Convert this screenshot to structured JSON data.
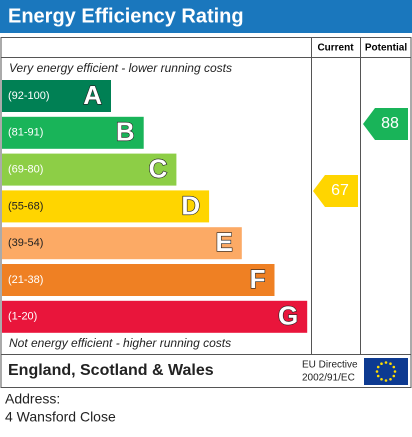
{
  "title": "Energy Efficiency Rating",
  "headers": {
    "current": "Current",
    "potential": "Potential"
  },
  "top_note": "Very energy efficient - lower running costs",
  "bottom_note": "Not energy efficient - higher running costs",
  "bands": [
    {
      "range": "(92-100)",
      "letter": "A",
      "color": "#008054"
    },
    {
      "range": "(81-91)",
      "letter": "B",
      "color": "#19b459"
    },
    {
      "range": "(69-80)",
      "letter": "C",
      "color": "#8dce46"
    },
    {
      "range": "(55-68)",
      "letter": "D",
      "color": "#ffd500"
    },
    {
      "range": "(39-54)",
      "letter": "E",
      "color": "#fcaa65"
    },
    {
      "range": "(21-38)",
      "letter": "F",
      "color": "#ef8023"
    },
    {
      "range": "(1-20)",
      "letter": "G",
      "color": "#e9153b"
    }
  ],
  "current": {
    "value": 67,
    "color": "#ffd500"
  },
  "potential": {
    "value": 88,
    "color": "#19b459"
  },
  "footer": {
    "region": "England, Scotland & Wales",
    "directive": "EU Directive",
    "directive_code": "2002/91/EC"
  },
  "address": {
    "label": "Address:",
    "value": "4 Wansford Close"
  }
}
